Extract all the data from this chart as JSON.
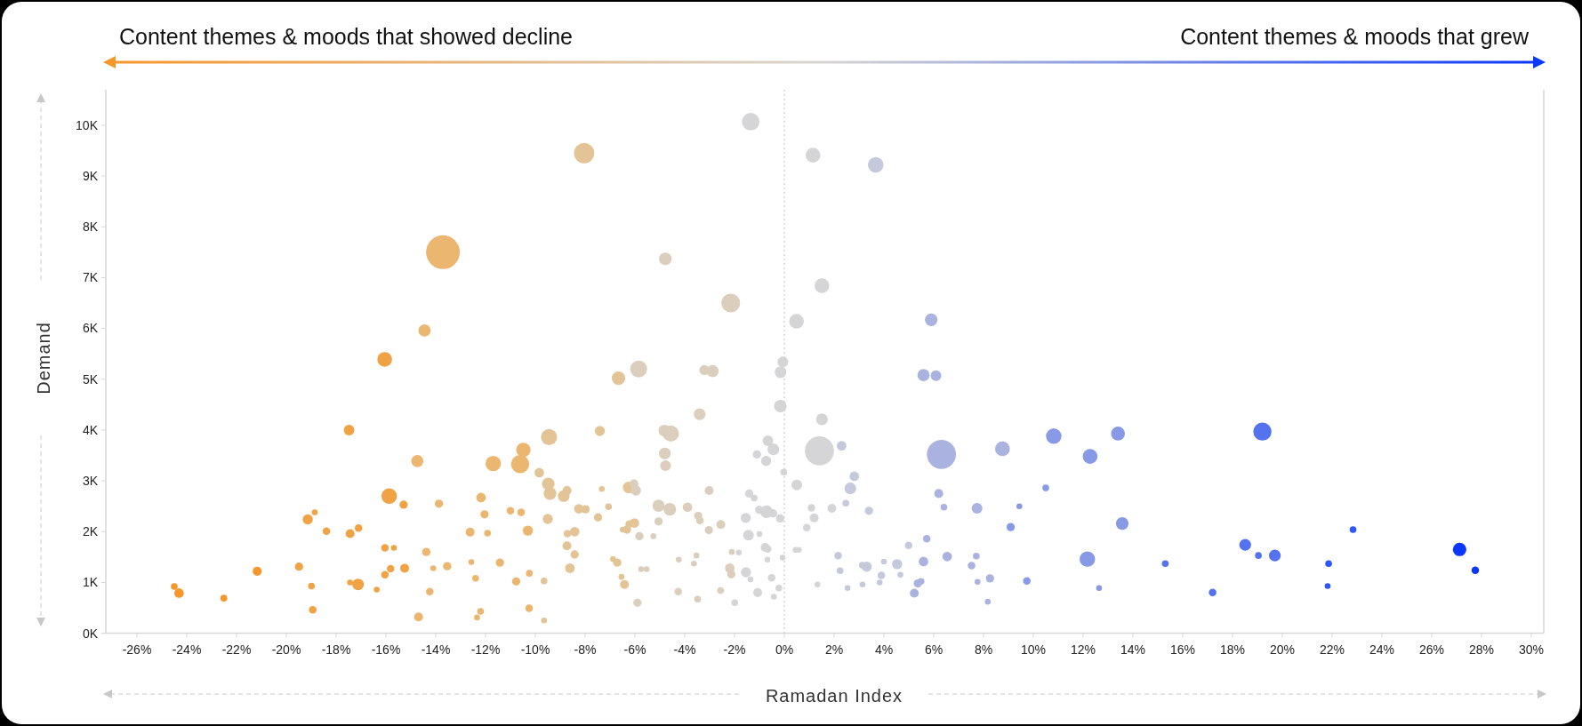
{
  "chart_data": {
    "type": "bubble",
    "xlabel": "Ramadan Index",
    "ylabel": "Demand",
    "annotations": [
      "Content themes & moods that showed decline",
      "Content themes & moods that grew"
    ],
    "xlim": [
      -27.25,
      30.5
    ],
    "ylim": [
      0,
      10.7
    ],
    "xticks": [
      {
        "value": -26,
        "label": "-26%"
      },
      {
        "value": -24,
        "label": "-24%"
      },
      {
        "value": -22,
        "label": "-22%"
      },
      {
        "value": -20,
        "label": "-20%"
      },
      {
        "value": -18,
        "label": "-18%"
      },
      {
        "value": -16,
        "label": "-16%"
      },
      {
        "value": -14,
        "label": "-14%"
      },
      {
        "value": -12,
        "label": "-12%"
      },
      {
        "value": -10,
        "label": "-10%"
      },
      {
        "value": -8,
        "label": "-8%"
      },
      {
        "value": -6,
        "label": "-6%"
      },
      {
        "value": -4,
        "label": "-4%"
      },
      {
        "value": -2,
        "label": "-2%"
      },
      {
        "value": 0,
        "label": "0%"
      },
      {
        "value": 2,
        "label": "2%"
      },
      {
        "value": 4,
        "label": "4%"
      },
      {
        "value": 6,
        "label": "6%"
      },
      {
        "value": 8,
        "label": "8%"
      },
      {
        "value": 10,
        "label": "10%"
      },
      {
        "value": 12,
        "label": "12%"
      },
      {
        "value": 14,
        "label": "14%"
      },
      {
        "value": 16,
        "label": "16%"
      },
      {
        "value": 18,
        "label": "18%"
      },
      {
        "value": 20,
        "label": "20%"
      },
      {
        "value": 22,
        "label": "22%"
      },
      {
        "value": 24,
        "label": "24%"
      },
      {
        "value": 26,
        "label": "26%"
      },
      {
        "value": 28,
        "label": "28%"
      },
      {
        "value": 30,
        "label": "30%"
      }
    ],
    "yticks": [
      {
        "value": 0,
        "label": "0K"
      },
      {
        "value": 1,
        "label": "1K"
      },
      {
        "value": 2,
        "label": "2K"
      },
      {
        "value": 3,
        "label": "3K"
      },
      {
        "value": 4,
        "label": "4K"
      },
      {
        "value": 5,
        "label": "5K"
      },
      {
        "value": 6,
        "label": "6K"
      },
      {
        "value": 7,
        "label": "7K"
      },
      {
        "value": 8,
        "label": "8K"
      },
      {
        "value": 9,
        "label": "9K"
      },
      {
        "value": 10,
        "label": "10K"
      }
    ],
    "ref_lines": [
      {
        "axis": "x",
        "value": 0,
        "color": "#c8c8c8",
        "line_style": "dotted"
      }
    ],
    "series": [
      {
        "color": "#f7962a",
        "x": [
          -24.5,
          -24.31,
          -22.51,
          -21.17
        ],
        "values": [
          0.92,
          0.79,
          0.69,
          1.22
        ],
        "sizes": [
          0.04,
          0.08,
          0.04,
          0.07
        ]
      },
      {
        "color": "#f0a345",
        "x": [
          -19.14,
          -18.86,
          -18.39,
          -17.48,
          -17.44,
          -17.1,
          -19.49,
          -18.99,
          -18.94,
          -17.44,
          -17.12,
          -16.37,
          -16.05,
          -15.87,
          -15.29,
          -16.04,
          -15.68,
          -15.81,
          -15.25,
          -16.04
        ],
        "values": [
          2.24,
          2.38,
          2.01,
          4.0,
          1.96,
          2.07,
          1.31,
          0.93,
          0.46,
          1.0,
          0.96,
          0.86,
          5.39,
          2.7,
          2.53,
          1.68,
          1.68,
          1.27,
          1.28,
          1.15
        ],
        "sizes": [
          0.09,
          0.03,
          0.05,
          0.1,
          0.07,
          0.05,
          0.06,
          0.04,
          0.05,
          0.03,
          0.12,
          0.03,
          0.19,
          0.21,
          0.06,
          0.05,
          0.03,
          0.05,
          0.07,
          0.05
        ]
      },
      {
        "color": "#ebb670",
        "x": [
          -14.45,
          -13.71,
          -14.74,
          -11.69,
          -10.61,
          -10.48,
          -13.87,
          -12.18,
          -12.04,
          -11.0,
          -10.57,
          -12.62,
          -11.92,
          -10.3,
          -14.38,
          -14.1,
          -13.54,
          -12.57,
          -11.42,
          -14.24,
          -12.4,
          -10.77,
          -10.24,
          -14.69,
          -12.34,
          -12.2,
          -10.25
        ],
        "values": [
          5.96,
          7.5,
          3.39,
          3.34,
          3.33,
          3.61,
          2.55,
          2.67,
          2.34,
          2.41,
          2.38,
          1.99,
          1.97,
          2.02,
          1.6,
          1.28,
          1.32,
          1.4,
          1.39,
          0.82,
          1.08,
          1.02,
          1.18,
          0.32,
          0.31,
          0.43,
          0.49
        ],
        "sizes": [
          0.13,
          1,
          0.13,
          0.21,
          0.29,
          0.18,
          0.06,
          0.08,
          0.06,
          0.05,
          0.05,
          0.07,
          0.04,
          0.09,
          0.06,
          0.03,
          0.06,
          0.03,
          0.06,
          0.05,
          0.04,
          0.06,
          0.04,
          0.07,
          0.03,
          0.04,
          0.05
        ]
      },
      {
        "color": "#e3c496",
        "x": [
          -8.04,
          -9.45,
          -9.84,
          -9.48,
          -9.41,
          -8.86,
          -8.73,
          -8.25,
          -7.98,
          -9.5,
          -8.71,
          -8.42,
          -8.73,
          -8.42,
          -8.61,
          -9.65,
          -9.65,
          -7.41,
          -7.33,
          -6.25,
          -7.06,
          -7.48,
          -6.66,
          -6.23,
          -6.02,
          -6.49,
          -6.32,
          -6.88,
          -6.71,
          -6.54,
          -6.42
        ],
        "values": [
          9.45,
          3.86,
          3.16,
          2.94,
          2.75,
          2.7,
          2.81,
          2.45,
          2.44,
          2.25,
          1.96,
          2.0,
          1.72,
          1.55,
          1.28,
          1.03,
          0.25,
          3.98,
          2.84,
          2.87,
          2.49,
          2.28,
          5.02,
          2.15,
          2.17,
          2.04,
          2.04,
          1.46,
          1.39,
          1.11,
          0.96
        ],
        "sizes": [
          0.36,
          0.23,
          0.08,
          0.14,
          0.14,
          0.12,
          0.07,
          0.08,
          0.06,
          0.09,
          0.05,
          0.08,
          0.07,
          0.06,
          0.08,
          0.04,
          0.03,
          0.09,
          0.03,
          0.12,
          0.04,
          0.06,
          0.16,
          0.05,
          0.08,
          0.03,
          0.06,
          0.03,
          0.06,
          0.03,
          0.07
        ]
      },
      {
        "color": "#dccebd",
        "x": [
          -5.85,
          -4.78,
          -3.21,
          -2.88,
          -3.4,
          -4.82,
          -4.56,
          -4.8,
          -4.77,
          -6.04,
          -5.96,
          -3.02,
          -5.05,
          -4.6,
          -3.89,
          -3.46,
          -3.39,
          -2.55,
          -3.03,
          -5.05,
          -5.82,
          -5.26,
          -2.11,
          -4.24,
          -3.53,
          -3.63,
          -5.75,
          -5.53,
          -4.26,
          -3.48,
          -5.9,
          -2.56,
          -2.15,
          -2.19,
          -2.13
        ],
        "values": [
          5.2,
          7.37,
          5.18,
          5.16,
          4.31,
          3.99,
          3.93,
          3.54,
          3.3,
          2.94,
          2.81,
          2.81,
          2.51,
          2.44,
          2.48,
          2.31,
          2.22,
          2.14,
          2.03,
          2.2,
          1.91,
          1.91,
          1.6,
          1.45,
          1.53,
          1.37,
          1.26,
          1.26,
          0.82,
          0.67,
          0.6,
          0.84,
          6.5,
          1.28,
          1.16
        ],
        "sizes": [
          0.25,
          0.14,
          0.09,
          0.13,
          0.12,
          0.12,
          0.23,
          0.12,
          0.1,
          0.07,
          0.09,
          0.07,
          0.13,
          0.14,
          0.08,
          0.06,
          0.05,
          0.07,
          0.06,
          0.06,
          0.06,
          0.03,
          0.03,
          0.03,
          0.03,
          0.03,
          0.03,
          0.03,
          0.05,
          0.04,
          0.06,
          0.04,
          0.31,
          0.08,
          0.06
        ]
      },
      {
        "color": "#d5d5d7",
        "x": [
          -1.35,
          1.15,
          1.51,
          0.49,
          -0.06,
          -0.15,
          -0.16,
          1.51,
          -0.66,
          -0.44,
          1.41,
          -1.1,
          -0.73,
          -0.02,
          0.5,
          -1.41,
          -1.21,
          -1.55,
          -1.01,
          -0.71,
          -0.45,
          -0.17,
          -1.44,
          -1.0,
          1.09,
          1.91,
          1.2,
          0.9,
          -0.77,
          -0.67,
          -1.83,
          -0.68,
          -0.07,
          0.45,
          0.58,
          1.33,
          -1.54,
          -1.36,
          -0.51,
          -1.07,
          -0.22,
          -0.42,
          -1.99
        ],
        "values": [
          10.07,
          9.41,
          6.84,
          6.14,
          5.34,
          5.14,
          4.47,
          4.21,
          3.79,
          3.62,
          3.59,
          3.52,
          3.39,
          3.17,
          2.92,
          2.75,
          2.66,
          2.27,
          2.43,
          2.39,
          2.36,
          2.26,
          1.93,
          1.95,
          2.47,
          2.46,
          2.27,
          2.08,
          1.69,
          1.66,
          1.59,
          1.45,
          1.49,
          1.64,
          1.64,
          0.96,
          1.2,
          1.06,
          1.09,
          0.8,
          0.89,
          0.72,
          0.6
        ],
        "sizes": [
          0.27,
          0.19,
          0.19,
          0.19,
          0.1,
          0.12,
          0.14,
          0.12,
          0.1,
          0.12,
          0.74,
          0.06,
          0.09,
          0.04,
          0.1,
          0.06,
          0.04,
          0.09,
          0.06,
          0.14,
          0.06,
          0.06,
          0.1,
          0.03,
          0.05,
          0.07,
          0.07,
          0.05,
          0.07,
          0.05,
          0.03,
          0.03,
          0.03,
          0.03,
          0.03,
          0.03,
          0.09,
          0.03,
          0.05,
          0.07,
          0.04,
          0.03,
          0.04
        ]
      },
      {
        "color": "#c5c9dc",
        "x": [
          3.67,
          2.3,
          2.81,
          2.65,
          2.47,
          3.4,
          4.99,
          2.16,
          4.0,
          4.53,
          3.13,
          3.31,
          2.24,
          3.9,
          4.66,
          2.54,
          3.14,
          3.83
        ],
        "values": [
          9.22,
          3.69,
          3.09,
          2.85,
          2.56,
          2.41,
          1.73,
          1.53,
          1.41,
          1.36,
          1.34,
          1.31,
          1.23,
          1.14,
          1.15,
          0.89,
          0.96,
          1.0
        ],
        "sizes": [
          0.21,
          0.08,
          0.08,
          0.12,
          0.04,
          0.06,
          0.05,
          0.05,
          0.03,
          0.09,
          0.04,
          0.09,
          0.04,
          0.05,
          0.03,
          0.03,
          0.03,
          0.03
        ]
      },
      {
        "color": "#aab3df",
        "x": [
          5.9,
          5.59,
          6.09,
          6.31,
          8.76,
          6.2,
          6.41,
          7.74,
          5.72,
          6.54,
          7.71,
          7.52,
          5.59,
          5.36,
          5.49,
          5.22,
          7.76,
          8.26,
          8.17
        ],
        "values": [
          6.17,
          5.08,
          5.07,
          3.52,
          3.63,
          2.75,
          2.48,
          2.46,
          1.86,
          1.51,
          1.52,
          1.33,
          1.41,
          0.98,
          1.02,
          0.79,
          1.01,
          1.08,
          0.62
        ],
        "sizes": [
          0.14,
          0.13,
          0.1,
          0.74,
          0.19,
          0.07,
          0.04,
          0.1,
          0.05,
          0.08,
          0.04,
          0.05,
          0.08,
          0.06,
          0.04,
          0.07,
          0.03,
          0.06,
          0.03
        ]
      },
      {
        "color": "#8899e6",
        "x": [
          10.82,
          10.5,
          9.44,
          9.09,
          9.74,
          13.4,
          12.28,
          13.57,
          12.17,
          12.64
        ],
        "values": [
          3.88,
          2.86,
          2.5,
          2.09,
          1.03,
          3.93,
          3.48,
          2.16,
          1.46,
          0.89
        ],
        "sizes": [
          0.21,
          0.04,
          0.03,
          0.06,
          0.05,
          0.17,
          0.19,
          0.14,
          0.21,
          0.03
        ]
      },
      {
        "color": "#5572ef",
        "x": [
          19.2,
          15.3,
          17.2,
          18.51,
          19.04,
          19.7
        ],
        "values": [
          3.97,
          1.37,
          0.8,
          1.74,
          1.53,
          1.53
        ],
        "sizes": [
          0.29,
          0.04,
          0.05,
          0.12,
          0.04,
          0.12
        ]
      },
      {
        "color": "#2f56f6",
        "x": [
          21.86,
          21.82,
          22.84
        ],
        "values": [
          1.37,
          0.93,
          2.04
        ],
        "sizes": [
          0.04,
          0.03,
          0.04
        ]
      },
      {
        "color": "#0a37fb",
        "x": [
          27.12,
          27.75
        ],
        "values": [
          1.65,
          1.24
        ],
        "sizes": [
          0.16,
          0.05
        ]
      }
    ]
  }
}
